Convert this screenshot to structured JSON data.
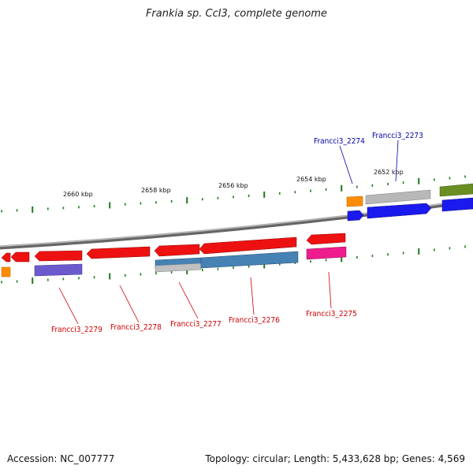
{
  "title": "Frankia sp. CcI3, complete genome",
  "footer": {
    "accession": "Accession: NC_007777",
    "summary": "Topology: circular; Length: 5,433,628 bp; Genes: 4,569"
  },
  "scale_labels": [
    "2660 kbp",
    "2658 kbp",
    "2656 kbp",
    "2654 kbp",
    "2652 kbp"
  ],
  "gene_labels_top": [
    "Francci3_2274",
    "Francci3_2273"
  ],
  "gene_labels_bottom": [
    "Francci3_2279",
    "Francci3_2278",
    "Francci3_2277",
    "Francci3_2276",
    "Francci3_2275"
  ],
  "colors": {
    "backbone": "#8a8a8a",
    "tick": "#1f7a1f",
    "forward_label": "#0000aa",
    "reverse_label": "#cc0000",
    "red_gene": "#ee1111",
    "blue_gene": "#1a1aee",
    "orange_gene": "#ff8c00",
    "gray_gene": "#a8a8a8",
    "olive_gene": "#6b8e23",
    "steel_gene": "#4682b4",
    "violet_gene": "#6a5acd",
    "magenta_gene": "#ee1c8c",
    "silver_gene": "#c0c0c0"
  }
}
